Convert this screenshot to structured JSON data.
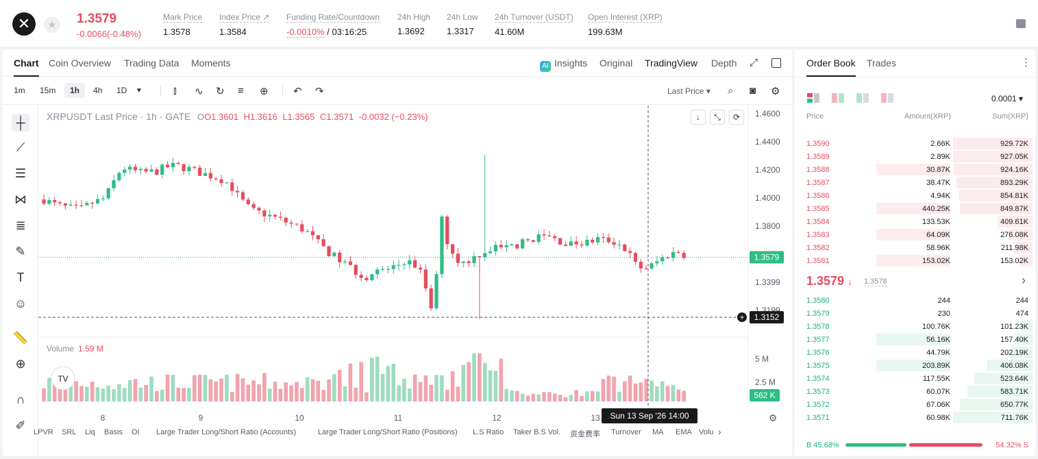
{
  "header": {
    "logo_glyph": "✕",
    "star_glyph": "★",
    "last_price": "1.3579",
    "change": "-0.0066(-0.48%)",
    "stats": [
      {
        "label": "Mark Price",
        "value": "1.3578"
      },
      {
        "label": "Index Price ↗",
        "value": "1.3584"
      },
      {
        "label": "Funding Rate/Countdown",
        "value_neg": "-0.0010%",
        "value": " / 03:16:25"
      },
      {
        "label": "24h High",
        "value": "1.3692"
      },
      {
        "label": "24h Low",
        "value": "1.3317"
      },
      {
        "label": "24h Turnover (USDT)",
        "value": "41.60M"
      },
      {
        "label": "Open Interest (XRP)",
        "value": "199.63M"
      }
    ]
  },
  "chart_tabs": [
    "Chart",
    "Coin Overview",
    "Trading Data",
    "Moments"
  ],
  "view_tabs": {
    "insights": "Insights",
    "ai": "AI",
    "original": "Original",
    "tradingview": "TradingView",
    "depth": "Depth"
  },
  "timeframes": [
    "1m",
    "15m",
    "1h",
    "4h",
    "1D"
  ],
  "price_source": "Last Price ▾",
  "legend": {
    "symbol": "XRPUSDT Last Price · 1h · GATE",
    "o": "O1.3601",
    "h": "H1.3616",
    "l": "L1.3565",
    "c": "C1.3571",
    "chg": "-0.0032 (−0.23%)"
  },
  "volume_legend": {
    "label": "Volume",
    "value": "1.59 M"
  },
  "chart_data": {
    "type": "candlestick",
    "price_axis": [
      "1.4600",
      "1.4400",
      "1.4200",
      "1.4000",
      "1.3800",
      "1.3399",
      "1.3199"
    ],
    "price_range": [
      1.305,
      1.462
    ],
    "volume_axis": [
      "5 M",
      "2.5 M"
    ],
    "time_axis": [
      "8",
      "9",
      "10",
      "11",
      "12",
      "13"
    ],
    "last_price_label": "1.3579",
    "crosshair_price": "1.3152",
    "crosshair_time": "Sun 13 Sep '26   14:00",
    "volume_last": "562 K",
    "up_color": "#2ebd85",
    "down_color": "#e54d5f"
  },
  "indicators": [
    "LPVR",
    "SRL",
    "Liq",
    "Basis",
    "OI",
    "Large Trader Long/Short Ratio (Accounts)",
    "Large Trader Long/Short Ratio (Positions)",
    "L.S Ratio",
    "Taker B.S Vol.",
    "资金费率",
    "Turnover",
    "MA",
    "EMA",
    "Volu"
  ],
  "orderbook": {
    "tabs": [
      "Order Book",
      "Trades"
    ],
    "precision": "0.0001 ▾",
    "headers": {
      "price": "Price",
      "amount": "Amount(XRP)",
      "sum": "Sum(XRP)"
    },
    "asks": [
      {
        "p": "1.3590",
        "a": "2.66K",
        "s": "929.72K",
        "af": 0.0,
        "sf": 1.0
      },
      {
        "p": "1.3589",
        "a": "2.89K",
        "s": "927.05K",
        "af": 0.0,
        "sf": 1.0
      },
      {
        "p": "1.3588",
        "a": "30.87K",
        "s": "924.16K",
        "af": 0.36,
        "sf": 0.99
      },
      {
        "p": "1.3587",
        "a": "38.47K",
        "s": "893.29K",
        "af": 0.0,
        "sf": 0.96
      },
      {
        "p": "1.3586",
        "a": "4.94K",
        "s": "854.81K",
        "af": 0.0,
        "sf": 0.92
      },
      {
        "p": "1.3585",
        "a": "440.25K",
        "s": "849.87K",
        "af": 0.36,
        "sf": 0.91
      },
      {
        "p": "1.3584",
        "a": "133.53K",
        "s": "409.61K",
        "af": 0.0,
        "sf": 0.44
      },
      {
        "p": "1.3583",
        "a": "64.09K",
        "s": "276.08K",
        "af": 0.36,
        "sf": 0.3
      },
      {
        "p": "1.3582",
        "a": "58.96K",
        "s": "211.98K",
        "af": 0.0,
        "sf": 0.23
      },
      {
        "p": "1.3581",
        "a": "153.02K",
        "s": "153.02K",
        "af": 0.36,
        "sf": 0.16
      }
    ],
    "mid": {
      "price": "1.3579",
      "arrow": "↓",
      "mark": "1.3578",
      "chevron": "›"
    },
    "bids": [
      {
        "p": "1.3580",
        "a": "244",
        "s": "244",
        "af": 0.0,
        "sf": 0.0
      },
      {
        "p": "1.3579",
        "a": "230",
        "s": "474",
        "af": 0.0,
        "sf": 0.0
      },
      {
        "p": "1.3578",
        "a": "100.76K",
        "s": "101.23K",
        "af": 0.0,
        "sf": 0.14
      },
      {
        "p": "1.3577",
        "a": "56.16K",
        "s": "157.40K",
        "af": 0.36,
        "sf": 0.22
      },
      {
        "p": "1.3576",
        "a": "44.79K",
        "s": "202.19K",
        "af": 0.0,
        "sf": 0.28
      },
      {
        "p": "1.3575",
        "a": "203.89K",
        "s": "406.08K",
        "af": 0.36,
        "sf": 0.57
      },
      {
        "p": "1.3574",
        "a": "117.55K",
        "s": "523.64K",
        "af": 0.0,
        "sf": 0.73
      },
      {
        "p": "1.3573",
        "a": "60.07K",
        "s": "583.71K",
        "af": 0.0,
        "sf": 0.82
      },
      {
        "p": "1.3572",
        "a": "67.06K",
        "s": "650.77K",
        "af": 0.0,
        "sf": 0.91
      },
      {
        "p": "1.3571",
        "a": "60.98K",
        "s": "711.76K",
        "af": 0.0,
        "sf": 1.0
      }
    ],
    "buy_ratio": "B 45.68%",
    "sell_ratio": "54.32% S",
    "buy_fraction": 0.4568
  }
}
